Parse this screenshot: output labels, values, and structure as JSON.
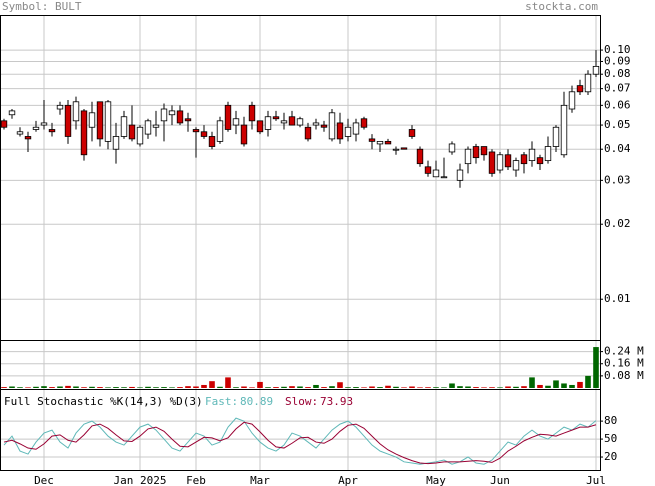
{
  "chart_data": [
    {
      "type": "candlestick",
      "title": "Symbol: BULT",
      "source": "stockta.com",
      "categories": [
        null,
        null,
        null,
        null,
        null,
        "Dec",
        null,
        null,
        null,
        null,
        null,
        null,
        null,
        null,
        null,
        null,
        null,
        "Jan 2025",
        null,
        null,
        null,
        null,
        null,
        null,
        "Feb",
        null,
        null,
        null,
        null,
        null,
        null,
        null,
        "Mar",
        null,
        null,
        null,
        null,
        null,
        null,
        null,
        null,
        null,
        null,
        "Apr",
        null,
        null,
        null,
        null,
        null,
        null,
        null,
        null,
        null,
        null,
        "May",
        null,
        null,
        null,
        null,
        null,
        null,
        null,
        "Jun",
        null,
        null,
        null,
        null,
        null,
        null,
        null,
        null,
        null,
        null,
        null,
        "Jul"
      ],
      "open": [
        0.052,
        0.055,
        0.046,
        0.045,
        0.048,
        0.05,
        0.048,
        0.058,
        0.06,
        0.052,
        0.057,
        0.049,
        0.062,
        0.043,
        0.04,
        0.045,
        0.05,
        0.042,
        0.046,
        0.049,
        0.052,
        0.055,
        0.057,
        0.053,
        0.048,
        0.047,
        0.045,
        0.043,
        0.06,
        0.05,
        0.05,
        0.06,
        0.052,
        0.048,
        0.054,
        0.051,
        0.054,
        0.05,
        0.049,
        0.05,
        0.05,
        0.044,
        0.051,
        0.045,
        0.046,
        0.053,
        0.044,
        0.042,
        0.043,
        0.04,
        0.0405,
        0.048,
        0.04,
        0.034,
        0.031,
        0.031,
        0.039,
        0.03,
        0.035,
        0.041,
        0.041,
        0.039,
        0.033,
        0.038,
        0.033,
        0.038,
        0.036,
        0.037,
        0.036,
        0.041,
        0.038,
        0.058,
        0.072,
        0.068,
        0.08
      ],
      "high": [
        0.053,
        0.058,
        0.049,
        0.047,
        0.052,
        0.063,
        0.051,
        0.062,
        0.063,
        0.065,
        0.058,
        0.062,
        0.062,
        0.063,
        0.051,
        0.057,
        0.06,
        0.05,
        0.053,
        0.057,
        0.061,
        0.06,
        0.06,
        0.056,
        0.049,
        0.05,
        0.047,
        0.054,
        0.062,
        0.057,
        0.054,
        0.062,
        0.052,
        0.057,
        0.057,
        0.056,
        0.057,
        0.054,
        0.051,
        0.053,
        0.052,
        0.058,
        0.056,
        0.053,
        0.053,
        0.054,
        0.046,
        0.043,
        0.044,
        0.041,
        0.0405,
        0.05,
        0.041,
        0.036,
        0.036,
        0.037,
        0.043,
        0.035,
        0.041,
        0.042,
        0.041,
        0.04,
        0.039,
        0.04,
        0.037,
        0.039,
        0.043,
        0.038,
        0.045,
        0.05,
        0.068,
        0.072,
        0.076,
        0.083,
        0.1
      ],
      "low": [
        0.048,
        0.053,
        0.045,
        0.039,
        0.047,
        0.048,
        0.045,
        0.055,
        0.042,
        0.048,
        0.036,
        0.043,
        0.041,
        0.04,
        0.035,
        0.044,
        0.043,
        0.041,
        0.044,
        0.045,
        0.043,
        0.05,
        0.05,
        0.047,
        0.037,
        0.044,
        0.04,
        0.042,
        0.047,
        0.046,
        0.041,
        0.048,
        0.046,
        0.045,
        0.052,
        0.048,
        0.05,
        0.049,
        0.043,
        0.048,
        0.047,
        0.043,
        0.042,
        0.043,
        0.043,
        0.048,
        0.04,
        0.039,
        0.042,
        0.038,
        0.04,
        0.044,
        0.034,
        0.031,
        0.031,
        0.031,
        0.038,
        0.028,
        0.032,
        0.035,
        0.036,
        0.031,
        0.032,
        0.033,
        0.031,
        0.032,
        0.034,
        0.033,
        0.035,
        0.039,
        0.037,
        0.056,
        0.066,
        0.066,
        0.078
      ],
      "close": [
        0.049,
        0.057,
        0.047,
        0.044,
        0.049,
        0.051,
        0.047,
        0.06,
        0.045,
        0.062,
        0.038,
        0.056,
        0.044,
        0.062,
        0.045,
        0.054,
        0.044,
        0.049,
        0.052,
        0.05,
        0.058,
        0.057,
        0.051,
        0.052,
        0.047,
        0.045,
        0.041,
        0.052,
        0.048,
        0.053,
        0.042,
        0.052,
        0.047,
        0.054,
        0.053,
        0.052,
        0.05,
        0.053,
        0.044,
        0.051,
        0.049,
        0.056,
        0.044,
        0.049,
        0.051,
        0.049,
        0.043,
        0.043,
        0.042,
        0.04,
        0.04,
        0.045,
        0.035,
        0.032,
        0.033,
        0.031,
        0.042,
        0.033,
        0.04,
        0.037,
        0.038,
        0.032,
        0.038,
        0.034,
        0.036,
        0.035,
        0.04,
        0.035,
        0.041,
        0.049,
        0.06,
        0.068,
        0.068,
        0.08,
        0.086
      ],
      "ylim": [
        0.00686,
        0.137
      ],
      "log_scale": true,
      "grid": true,
      "yticks": [
        {
          "value": 0.1,
          "label": "0.10"
        },
        0.09,
        0.08,
        0.07,
        0.06,
        0.05,
        0.04,
        0.03,
        0.02,
        0.01
      ],
      "up_color": "#ffffff",
      "down_color": "#cc0000"
    },
    {
      "type": "bar",
      "values": [
        0.006,
        0.01,
        0.005,
        0.004,
        0.008,
        0.012,
        0.006,
        0.01,
        0.014,
        0.01,
        0.005,
        0.008,
        0.006,
        0.004,
        0.006,
        0.005,
        0.007,
        0.004,
        0.008,
        0.005,
        0.006,
        0.004,
        0.006,
        0.012,
        0.01,
        0.02,
        0.045,
        0.008,
        0.07,
        0.005,
        0.01,
        0.004,
        0.04,
        0.005,
        0.006,
        0.008,
        0.012,
        0.01,
        0.006,
        0.02,
        0.006,
        0.012,
        0.038,
        0.005,
        0.006,
        0.004,
        0.01,
        0.006,
        0.015,
        0.008,
        0.004,
        0.01,
        0.004,
        0.005,
        0.005,
        0.004,
        0.03,
        0.012,
        0.01,
        0.006,
        0.004,
        0.005,
        0.004,
        0.01,
        0.008,
        0.012,
        0.07,
        0.02,
        0.015,
        0.05,
        0.03,
        0.02,
        0.04,
        0.08,
        0.27
      ],
      "ylim": [
        0,
        0.31
      ],
      "yticks": [
        {
          "value": 0.24,
          "label": "0.24 M"
        },
        {
          "value": 0.16,
          "label": "0.16 M"
        },
        {
          "value": 0.08,
          "label": "0.08 M"
        }
      ],
      "up_color": "#006600",
      "down_color": "#cc0000"
    },
    {
      "type": "line",
      "title": "Full Stochastic %K(14,3) %D(3)",
      "series": [
        {
          "name": "Fast:",
          "color": "#5fb8b8",
          "values": [
            40,
            55,
            30,
            25,
            45,
            60,
            65,
            45,
            35,
            60,
            75,
            80,
            70,
            55,
            45,
            40,
            55,
            70,
            75,
            65,
            50,
            35,
            30,
            45,
            60,
            55,
            40,
            45,
            70,
            85,
            80,
            60,
            45,
            35,
            30,
            40,
            60,
            55,
            45,
            35,
            50,
            65,
            75,
            80,
            70,
            55,
            40,
            30,
            25,
            20,
            12,
            10,
            8,
            10,
            12,
            15,
            8,
            12,
            20,
            10,
            8,
            15,
            30,
            45,
            40,
            55,
            65,
            55,
            50,
            60,
            70,
            65,
            75,
            70,
            80.89
          ]
        },
        {
          "name": "Slow:",
          "color": "#990033",
          "values": [
            45,
            48,
            42,
            35,
            33,
            42,
            55,
            57,
            48,
            45,
            57,
            72,
            75,
            68,
            57,
            47,
            46,
            55,
            67,
            70,
            63,
            50,
            38,
            37,
            45,
            53,
            52,
            47,
            52,
            67,
            78,
            75,
            62,
            48,
            37,
            35,
            43,
            52,
            53,
            45,
            43,
            50,
            63,
            73,
            75,
            68,
            55,
            42,
            32,
            25,
            19,
            14,
            10,
            9,
            10,
            12,
            12,
            12,
            13,
            14,
            13,
            11,
            18,
            30,
            38,
            47,
            53,
            58,
            57,
            55,
            60,
            65,
            70,
            70,
            73.93
          ]
        }
      ],
      "ylim": [
        0,
        132
      ],
      "yticks": [
        20,
        50,
        80
      ],
      "grid": true
    }
  ]
}
